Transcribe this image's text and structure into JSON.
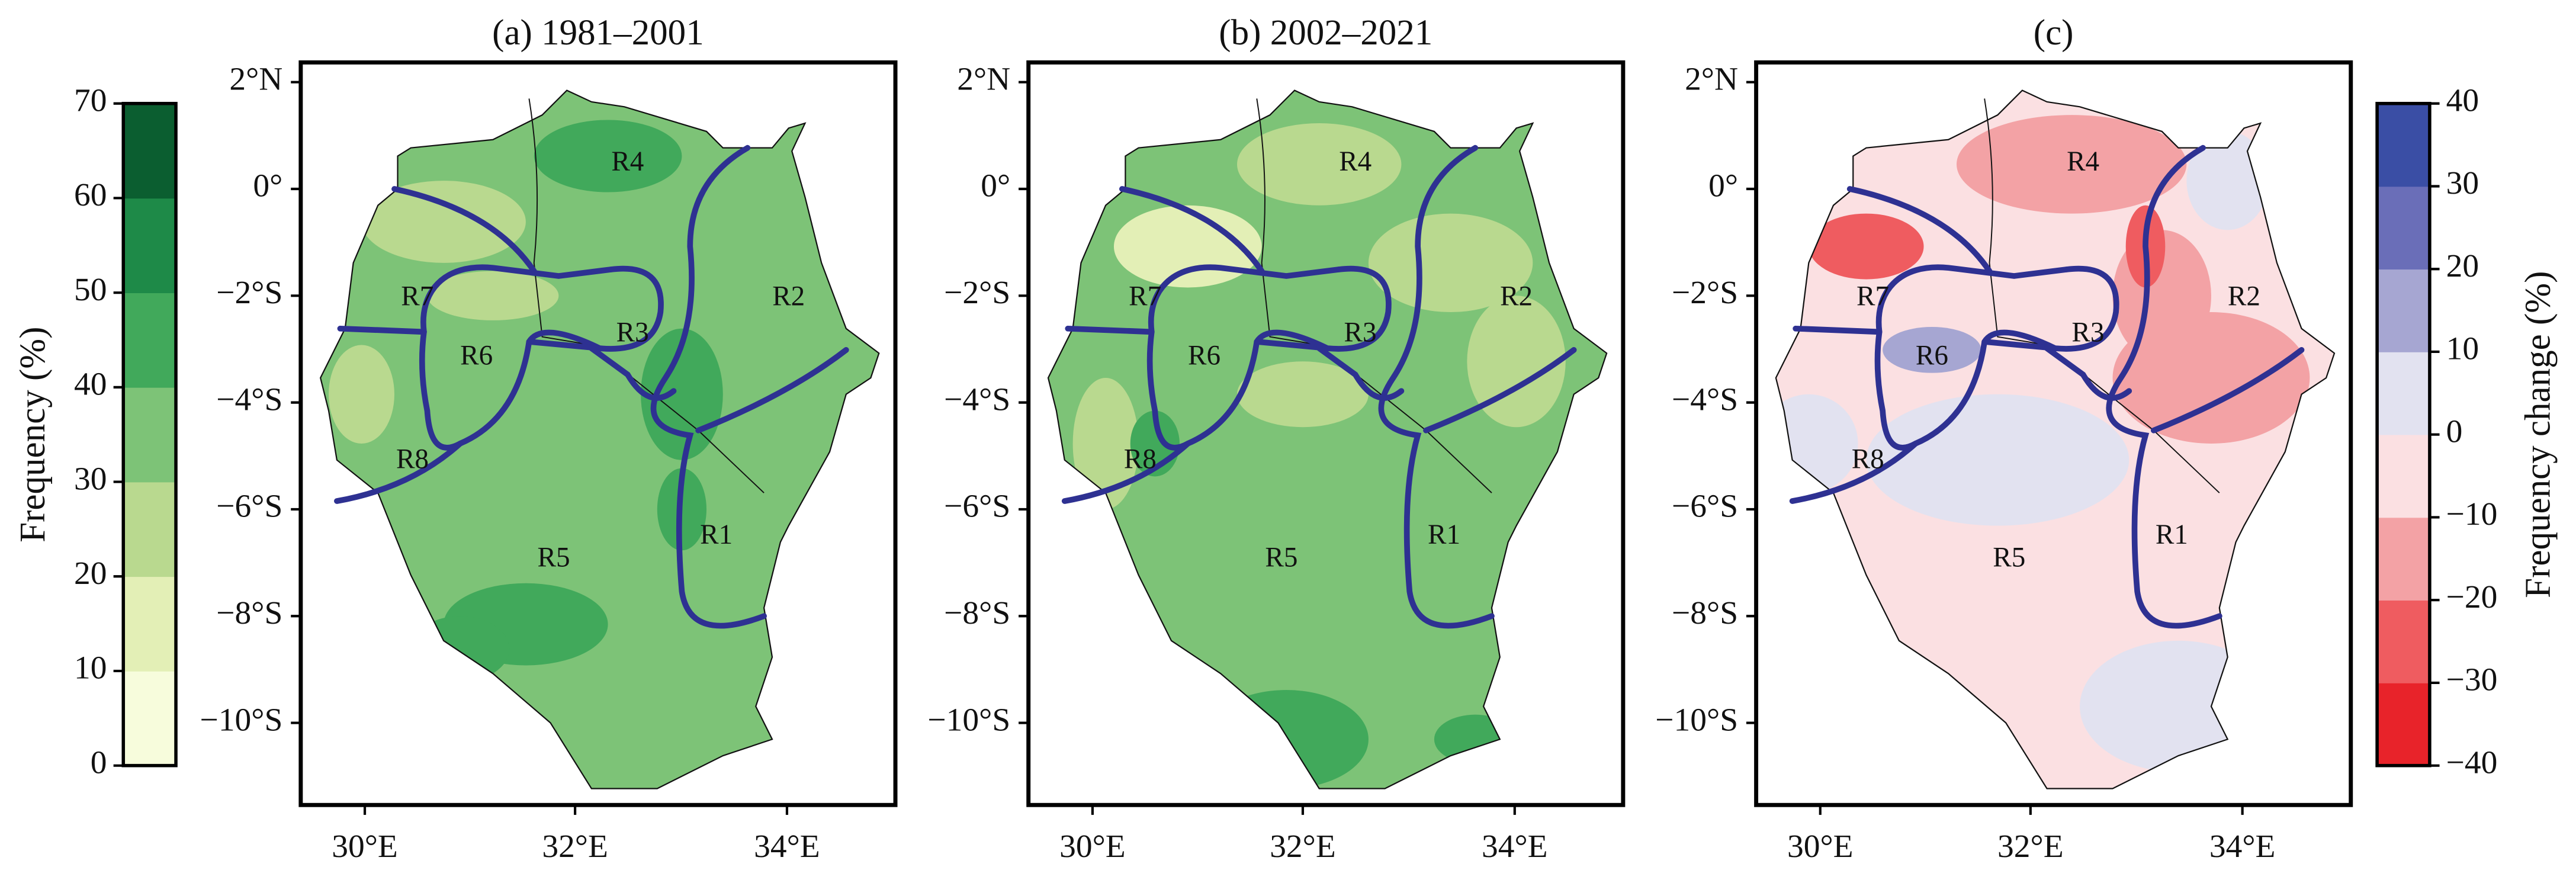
{
  "panels": [
    {
      "title": "(a) 1981–2001",
      "lon_ticks": [
        "30°E",
        "32°E",
        "34°E"
      ],
      "lat_ticks": [
        "2°N",
        "0°",
        "−2°S",
        "−4°S",
        "−6°S",
        "−8°S",
        "−10°S"
      ],
      "regions": [
        "R1",
        "R2",
        "R3",
        "R4",
        "R5",
        "R6",
        "R7",
        "R8"
      ]
    },
    {
      "title": "(b) 2002–2021",
      "lon_ticks": [
        "30°E",
        "32°E",
        "34°E"
      ],
      "lat_ticks": [
        "2°N",
        "0°",
        "−2°S",
        "−4°S",
        "−6°S",
        "−8°S",
        "−10°S"
      ],
      "regions": [
        "R1",
        "R2",
        "R3",
        "R4",
        "R5",
        "R6",
        "R7",
        "R8"
      ]
    },
    {
      "title": "(c)",
      "lon_ticks": [
        "30°E",
        "32°E",
        "34°E"
      ],
      "lat_ticks": [
        "2°N",
        "0°",
        "−2°S",
        "−4°S",
        "−6°S",
        "−8°S",
        "−10°S"
      ],
      "regions": [
        "R1",
        "R2",
        "R3",
        "R4",
        "R5",
        "R6",
        "R7",
        "R8"
      ]
    }
  ],
  "colorbars": [
    {
      "label": "Frequency (%)",
      "ticks": [
        0,
        10,
        20,
        30,
        40,
        50,
        60,
        70
      ],
      "colors": [
        "#f7fcdc",
        "#e3efb6",
        "#b9d98f",
        "#7dc377",
        "#41a95b",
        "#1e8a48",
        "#0b5e30"
      ]
    },
    {
      "label": "Frequency change (%)",
      "ticks": [
        {
          "value": -40,
          "label": "−40"
        },
        {
          "value": -30,
          "label": "−30"
        },
        {
          "value": -20,
          "label": "−20"
        },
        {
          "value": -10,
          "label": "−10"
        },
        0,
        10,
        20,
        30,
        40
      ],
      "colors": [
        "#e8232a",
        "#ef5c60",
        "#f3a2a5",
        "#fbe0e2",
        "#e2e2f0",
        "#a6a6d2",
        "#6a6eb8",
        "#3a4ea5"
      ]
    }
  ]
}
